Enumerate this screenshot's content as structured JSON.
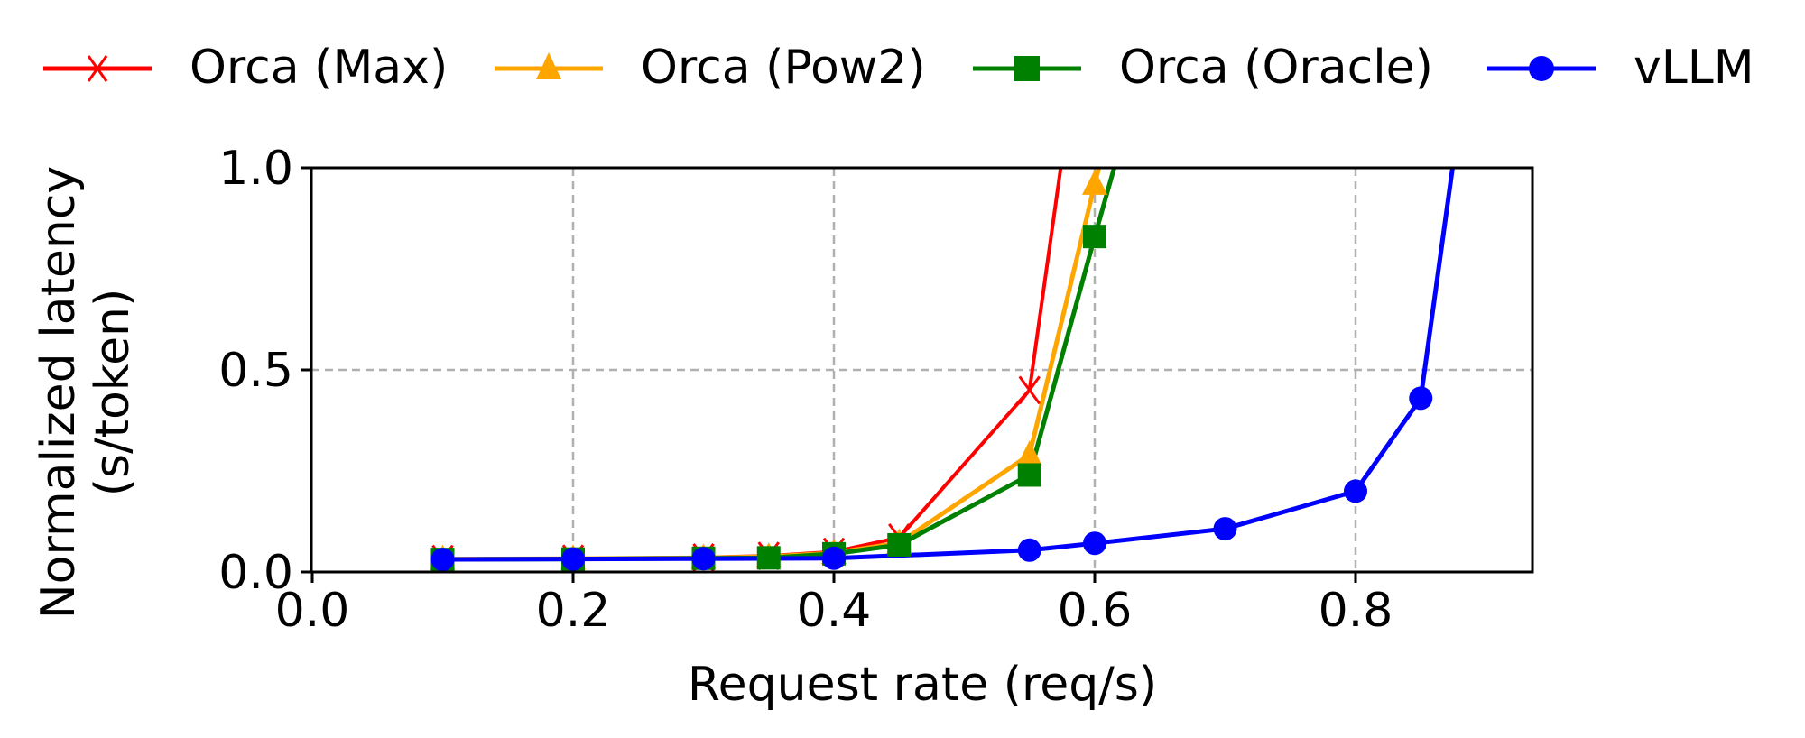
{
  "chart_data": {
    "type": "line",
    "title": "",
    "xlabel": "Request rate (req/s)",
    "ylabel": "Normalized latency\n(s/token)",
    "ylabel_lines": [
      "Normalized latency",
      "(s/token)"
    ],
    "xlim": [
      0.0,
      0.935
    ],
    "ylim": [
      0.0,
      1.0
    ],
    "xticks": [
      0.0,
      0.2,
      0.4,
      0.6,
      0.8
    ],
    "xtick_labels": [
      "0.0",
      "0.2",
      "0.4",
      "0.6",
      "0.8"
    ],
    "yticks": [
      0.0,
      0.5,
      1.0
    ],
    "ytick_labels": [
      "0.0",
      "0.5",
      "1.0"
    ],
    "grid": true,
    "legend_position": "top, outside plot, single row",
    "series": [
      {
        "name": "Orca (Max)",
        "color": "#ff0000",
        "marker": "x",
        "x": [
          0.1,
          0.2,
          0.3,
          0.35,
          0.4,
          0.45,
          0.55,
          0.6
        ],
        "y": [
          0.032,
          0.033,
          0.036,
          0.04,
          0.05,
          0.085,
          0.45,
          1.6
        ]
      },
      {
        "name": "Orca (Pow2)",
        "color": "#ffa500",
        "marker": "triangle",
        "x": [
          0.1,
          0.2,
          0.3,
          0.35,
          0.4,
          0.45,
          0.55,
          0.6,
          0.65
        ],
        "y": [
          0.032,
          0.033,
          0.035,
          0.038,
          0.047,
          0.072,
          0.29,
          0.96,
          1.6
        ]
      },
      {
        "name": "Orca (Oracle)",
        "color": "#008000",
        "marker": "square",
        "x": [
          0.1,
          0.2,
          0.3,
          0.35,
          0.4,
          0.45,
          0.55,
          0.6,
          0.65
        ],
        "y": [
          0.031,
          0.032,
          0.034,
          0.035,
          0.045,
          0.067,
          0.24,
          0.83,
          1.4
        ]
      },
      {
        "name": "vLLM",
        "color": "#0000ff",
        "marker": "circle",
        "x": [
          0.1,
          0.2,
          0.3,
          0.4,
          0.55,
          0.6,
          0.7,
          0.8,
          0.85,
          0.9
        ],
        "y": [
          0.031,
          0.032,
          0.033,
          0.034,
          0.054,
          0.071,
          0.107,
          0.2,
          0.43,
          1.6
        ]
      }
    ]
  },
  "legend": {
    "items": [
      {
        "label": "Orca (Max)",
        "color": "#ff0000",
        "marker": "x-icon"
      },
      {
        "label": "Orca (Pow2)",
        "color": "#ffa500",
        "marker": "triangle-icon"
      },
      {
        "label": "Orca (Oracle)",
        "color": "#008000",
        "marker": "square-icon"
      },
      {
        "label": "vLLM",
        "color": "#0000ff",
        "marker": "circle-icon"
      }
    ]
  },
  "axes": {
    "xlabel": "Request rate (req/s)",
    "ylabel_line1": "Normalized latency",
    "ylabel_line2": "(s/token)"
  },
  "colors": {
    "grid": "#b0b0b0",
    "axis": "#000000"
  }
}
